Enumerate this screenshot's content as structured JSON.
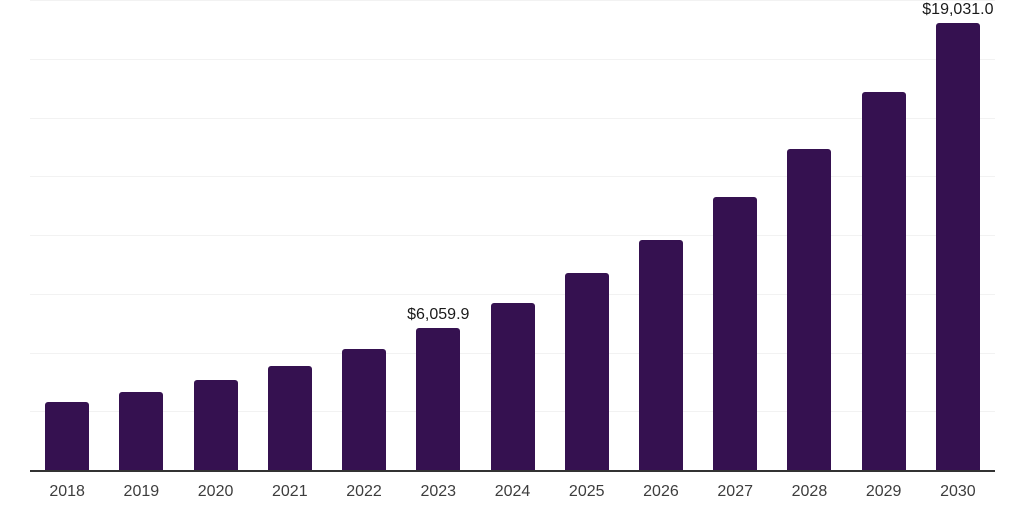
{
  "chart_data": {
    "type": "bar",
    "title": "",
    "xlabel": "",
    "ylabel": "",
    "categories": [
      "2018",
      "2019",
      "2020",
      "2021",
      "2022",
      "2023",
      "2024",
      "2025",
      "2026",
      "2027",
      "2028",
      "2029",
      "2030"
    ],
    "values": [
      2895,
      3330,
      3820,
      4440,
      5140,
      6059.9,
      7120,
      8370,
      9790,
      11600,
      13660,
      16100,
      19031
    ],
    "data_labels": {
      "2023": "$6,059.9",
      "2030": "$19,031.0"
    },
    "ylim": [
      0,
      20000
    ],
    "gridline_step": 2500,
    "grid": true,
    "legend": "none",
    "colors": {
      "bar": "#351150",
      "axis_line": "#333333",
      "gridline": "#f2f2f2",
      "tick_label": "#3d3d3d",
      "data_label": "#1a1a1a"
    }
  }
}
